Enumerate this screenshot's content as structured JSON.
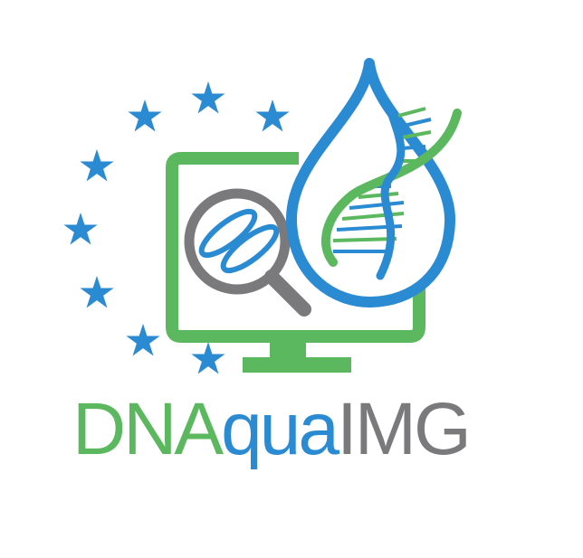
{
  "logo": {
    "name": "DNAqualMG",
    "wordmark": [
      {
        "text": "DNA",
        "color": "#5cb85f"
      },
      {
        "text": "qua",
        "color": "#2a8bd2"
      },
      {
        "text": "IMG",
        "color": "#7a7a7c"
      }
    ],
    "colors": {
      "green": "#5cb85f",
      "blue": "#2a8bd2",
      "gray": "#7a7a7c",
      "background": "#ffffff"
    },
    "icons": [
      "eu-stars-icon",
      "monitor-icon",
      "magnifier-icon",
      "diatom-icon",
      "water-drop-icon",
      "dna-helix-icon"
    ]
  }
}
